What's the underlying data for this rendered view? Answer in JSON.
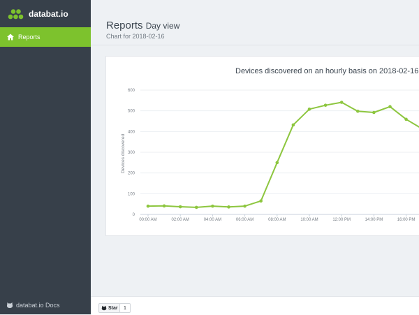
{
  "app": {
    "name": "databat.io"
  },
  "sidebar": {
    "items": [
      {
        "label": "Reports",
        "icon": "home-icon",
        "active": true
      }
    ],
    "docs_label": "databat.io Docs",
    "docs_icon": "github-icon"
  },
  "header": {
    "title": "Reports",
    "title_suffix": "Day view",
    "subtitle": "Chart for 2018-02-16"
  },
  "footer": {
    "star_label": "Star",
    "star_count": "1"
  },
  "colors": {
    "accent": "#7dc22d",
    "sidebar": "#37404a",
    "line": "#8dc63f"
  },
  "chart_data": {
    "type": "line",
    "title": "Devices discovered on an hourly basis on 2018-02-16",
    "xlabel": "",
    "ylabel": "Devices discovered",
    "ylim": [
      0,
      600
    ],
    "yticks": [
      0,
      100,
      200,
      300,
      400,
      500,
      600
    ],
    "x_tick_labels": [
      "00:00 AM",
      "02:00 AM",
      "04:00 AM",
      "06:00 AM",
      "08:00 AM",
      "10:00 AM",
      "12:00 PM",
      "14:00 PM",
      "16:00 PM"
    ],
    "grid": true,
    "series": [
      {
        "x": [
          0,
          1,
          2,
          3,
          4,
          5,
          6,
          7,
          8,
          9,
          10,
          11,
          12,
          13,
          14,
          15,
          16,
          17
        ],
        "values": [
          40,
          41,
          37,
          34,
          40,
          36,
          40,
          65,
          250,
          432,
          508,
          527,
          541,
          498,
          492,
          520,
          459,
          413
        ]
      }
    ]
  }
}
